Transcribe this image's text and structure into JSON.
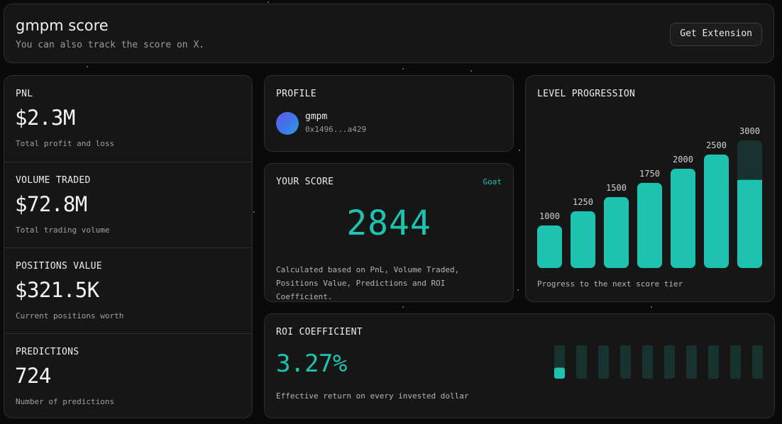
{
  "header": {
    "title": "gmpm score",
    "subtitle": "You can also track the score on X.",
    "extension_button": "Get Extension"
  },
  "stats": [
    {
      "title": "PNL",
      "value": "$2.3M",
      "desc": "Total profit and loss"
    },
    {
      "title": "VOLUME TRADED",
      "value": "$72.8M",
      "desc": "Total trading volume"
    },
    {
      "title": "POSITIONS VALUE",
      "value": "$321.5K",
      "desc": "Current positions worth"
    },
    {
      "title": "PREDICTIONS",
      "value": "724",
      "desc": "Number of predictions"
    }
  ],
  "profile": {
    "title": "PROFILE",
    "name": "gmpm",
    "address": "0x1496...a429"
  },
  "score": {
    "title": "YOUR SCORE",
    "badge": "Goat",
    "value": "2844",
    "description": "Calculated based on PnL, Volume Traded, Positions Value, Predictions and ROI Coefficient."
  },
  "level_progression": {
    "title": "LEVEL PROGRESSION",
    "footer": "Progress to the next score tier",
    "tiers": [
      {
        "label": "1000",
        "value": 1000,
        "fill": 1
      },
      {
        "label": "1250",
        "value": 1250,
        "fill": 1
      },
      {
        "label": "1500",
        "value": 1500,
        "fill": 1
      },
      {
        "label": "1750",
        "value": 1750,
        "fill": 1
      },
      {
        "label": "2000",
        "value": 2000,
        "fill": 1
      },
      {
        "label": "2500",
        "value": 2500,
        "fill": 1
      },
      {
        "label": "3000",
        "value": 3000,
        "fill": 0.69
      }
    ]
  },
  "roi": {
    "title": "ROI COEFFICIENT",
    "value": "3.27%",
    "description": "Effective return on every invested dollar",
    "segment_count": 10,
    "first_segment_fill": 0.33
  },
  "colors": {
    "accent": "#1ec3b0",
    "bar_track": "#183230",
    "card_bg": "#161616"
  }
}
